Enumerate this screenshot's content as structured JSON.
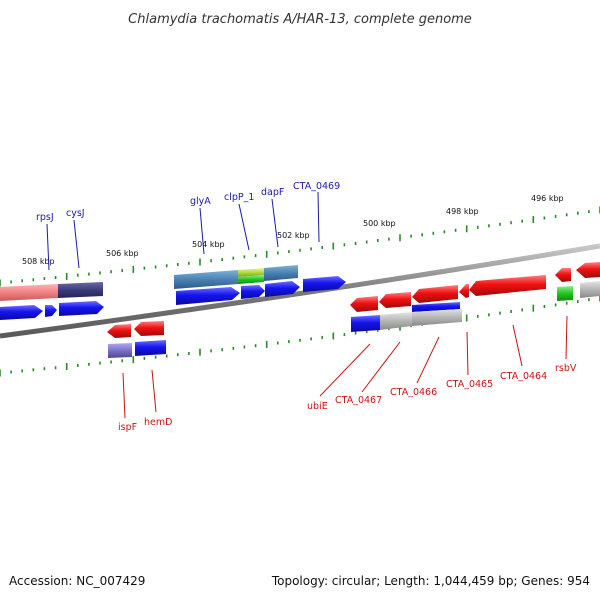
{
  "title": "Chlamydia trachomatis A/HAR-13, complete genome",
  "footer": {
    "accession": "Accession: NC_007429",
    "summary": "Topology: circular; Length: 1,044,459 bp; Genes: 954"
  },
  "scale_labels": [
    "508 kbp",
    "506 kbp",
    "504 kbp",
    "502 kbp",
    "500 kbp",
    "498 kbp",
    "496 kbp"
  ],
  "top_genes": [
    "rpsJ",
    "cysJ",
    "glyA",
    "clpP_1",
    "dapF",
    "CTA_0469"
  ],
  "bottom_genes": [
    "ispF",
    "hemD",
    "ubiE",
    "CTA_0467",
    "CTA_0466",
    "CTA_0465",
    "CTA_0464",
    "rsbV"
  ],
  "colors": {
    "forward_label": "#1a1aa8",
    "reverse_label": "#c81414",
    "backbone": "#8a8a8a",
    "tick": "#2a8a2a",
    "cds_blue": "#1010e6",
    "cds_red": "#f01010",
    "cog_steel": "#4d86b8",
    "cog_navy": "#3a3a78",
    "cog_salmon": "#f08080",
    "cog_lime": "#b6d83c",
    "cog_purple": "#7b72c8",
    "cog_gray": "#b5b5b5",
    "cog_green": "#22c322"
  }
}
